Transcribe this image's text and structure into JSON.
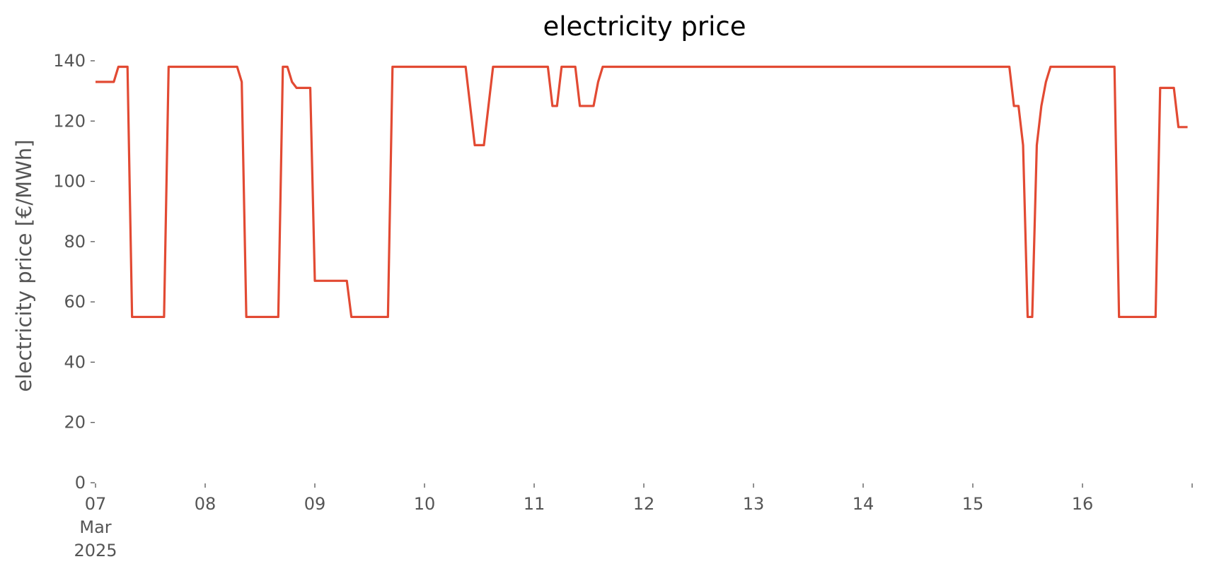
{
  "chart_data": {
    "type": "line",
    "title": "electricity price",
    "xlabel": "",
    "ylabel": "electricity price [€/MWh]",
    "ylim": [
      0,
      140
    ],
    "xlim": [
      "2025-03-07T00:00",
      "2025-03-16T23:00"
    ],
    "y_ticks": [
      0,
      20,
      40,
      60,
      80,
      100,
      120,
      140
    ],
    "x_ticks": [
      {
        "date": "2025-03-07",
        "label": "07",
        "sublabel": "Mar",
        "subsublabel": "2025"
      },
      {
        "date": "2025-03-08",
        "label": "08"
      },
      {
        "date": "2025-03-09",
        "label": "09"
      },
      {
        "date": "2025-03-10",
        "label": "10"
      },
      {
        "date": "2025-03-11",
        "label": "11"
      },
      {
        "date": "2025-03-12",
        "label": "12"
      },
      {
        "date": "2025-03-13",
        "label": "13"
      },
      {
        "date": "2025-03-14",
        "label": "14"
      },
      {
        "date": "2025-03-15",
        "label": "15"
      },
      {
        "date": "2025-03-16",
        "label": "16"
      },
      {
        "date": "2025-03-17",
        "label": ""
      }
    ],
    "grid": false,
    "series": [
      {
        "color": "#e24a33",
        "x": [
          "2025-03-07T00:00",
          "2025-03-07T04:00",
          "2025-03-07T05:00",
          "2025-03-07T07:00",
          "2025-03-07T08:00",
          "2025-03-07T09:00",
          "2025-03-07T15:00",
          "2025-03-07T16:00",
          "2025-03-08T07:00",
          "2025-03-08T08:00",
          "2025-03-08T09:00",
          "2025-03-08T16:00",
          "2025-03-08T17:00",
          "2025-03-08T18:00",
          "2025-03-08T19:00",
          "2025-03-08T20:00",
          "2025-03-08T23:00",
          "2025-03-09T00:00",
          "2025-03-09T07:00",
          "2025-03-09T08:00",
          "2025-03-09T16:00",
          "2025-03-09T17:00",
          "2025-03-10T09:00",
          "2025-03-10T11:00",
          "2025-03-10T13:00",
          "2025-03-10T15:00",
          "2025-03-11T03:00",
          "2025-03-11T04:00",
          "2025-03-11T05:00",
          "2025-03-11T06:00",
          "2025-03-11T09:00",
          "2025-03-11T10:00",
          "2025-03-11T13:00",
          "2025-03-11T14:00",
          "2025-03-11T15:00",
          "2025-03-15T08:00",
          "2025-03-15T09:00",
          "2025-03-15T10:00",
          "2025-03-15T11:00",
          "2025-03-15T12:00",
          "2025-03-15T13:00",
          "2025-03-15T14:00",
          "2025-03-15T15:00",
          "2025-03-15T16:00",
          "2025-03-15T17:00",
          "2025-03-16T07:00",
          "2025-03-16T08:00",
          "2025-03-16T16:00",
          "2025-03-16T17:00",
          "2025-03-16T20:00",
          "2025-03-16T21:00",
          "2025-03-16T23:00"
        ],
        "y": [
          133,
          133,
          138,
          138,
          55,
          55,
          55,
          138,
          138,
          133,
          55,
          55,
          138,
          138,
          133,
          131,
          131,
          67,
          67,
          55,
          55,
          138,
          138,
          112,
          112,
          138,
          138,
          125,
          125,
          138,
          138,
          125,
          125,
          133,
          138,
          138,
          125,
          125,
          112,
          55,
          55,
          112,
          125,
          133,
          138,
          138,
          55,
          55,
          131,
          131,
          118,
          118
        ]
      }
    ]
  }
}
